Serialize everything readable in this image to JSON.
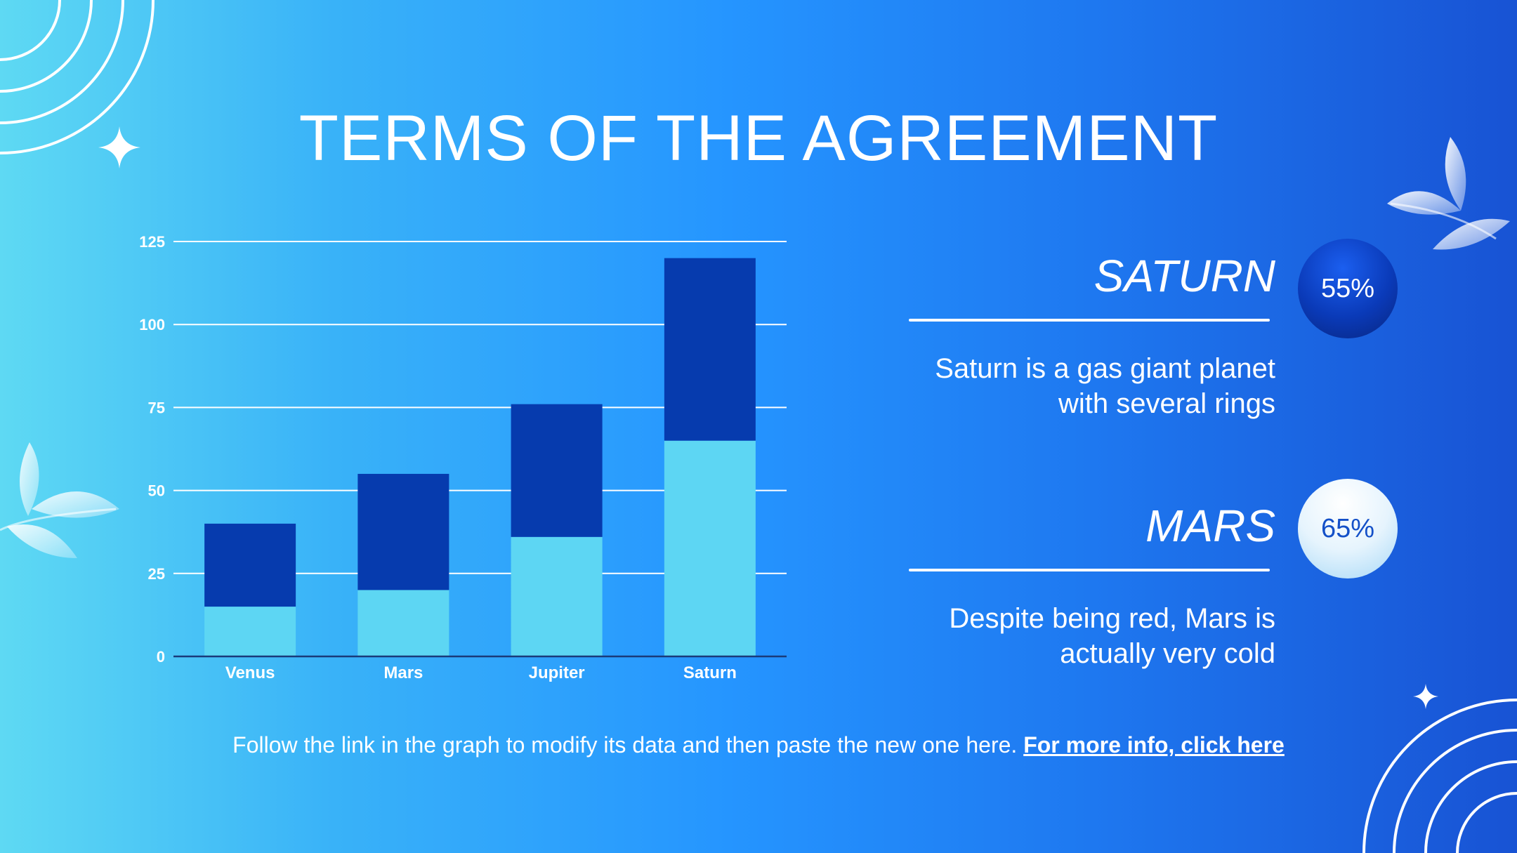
{
  "slide": {
    "title": "TERMS OF THE AGREEMENT",
    "footer_text": "Follow the link in the graph to modify its data and then paste the new one here.",
    "footer_link": "For more info, click here"
  },
  "planets": [
    {
      "name": "SATURN",
      "percent": "55%",
      "description_line1": "Saturn is a gas giant planet",
      "description_line2": "with several rings",
      "badge_style": "dark"
    },
    {
      "name": "MARS",
      "percent": "65%",
      "description_line1": "Despite being red, Mars is",
      "description_line2": "actually very cold",
      "badge_style": "light"
    }
  ],
  "colors": {
    "series_bottom": "#5dd6f3",
    "series_top": "#063bae",
    "gridline": "#ffffff",
    "axis_line": "#1a3b7a"
  },
  "icons": [
    "concentric-arcs-icon",
    "sparkle-icon",
    "leaf-icon"
  ],
  "chart_data": {
    "type": "bar",
    "stacked": true,
    "categories": [
      "Venus",
      "Mars",
      "Jupiter",
      "Saturn"
    ],
    "series": [
      {
        "values": [
          15,
          20,
          36,
          65
        ]
      },
      {
        "values": [
          25,
          35,
          40,
          55
        ]
      }
    ],
    "yticks": [
      "0",
      "25",
      "50",
      "75",
      "100",
      "125"
    ],
    "ylim": [
      0,
      125
    ],
    "grid": true,
    "legend": "none"
  }
}
